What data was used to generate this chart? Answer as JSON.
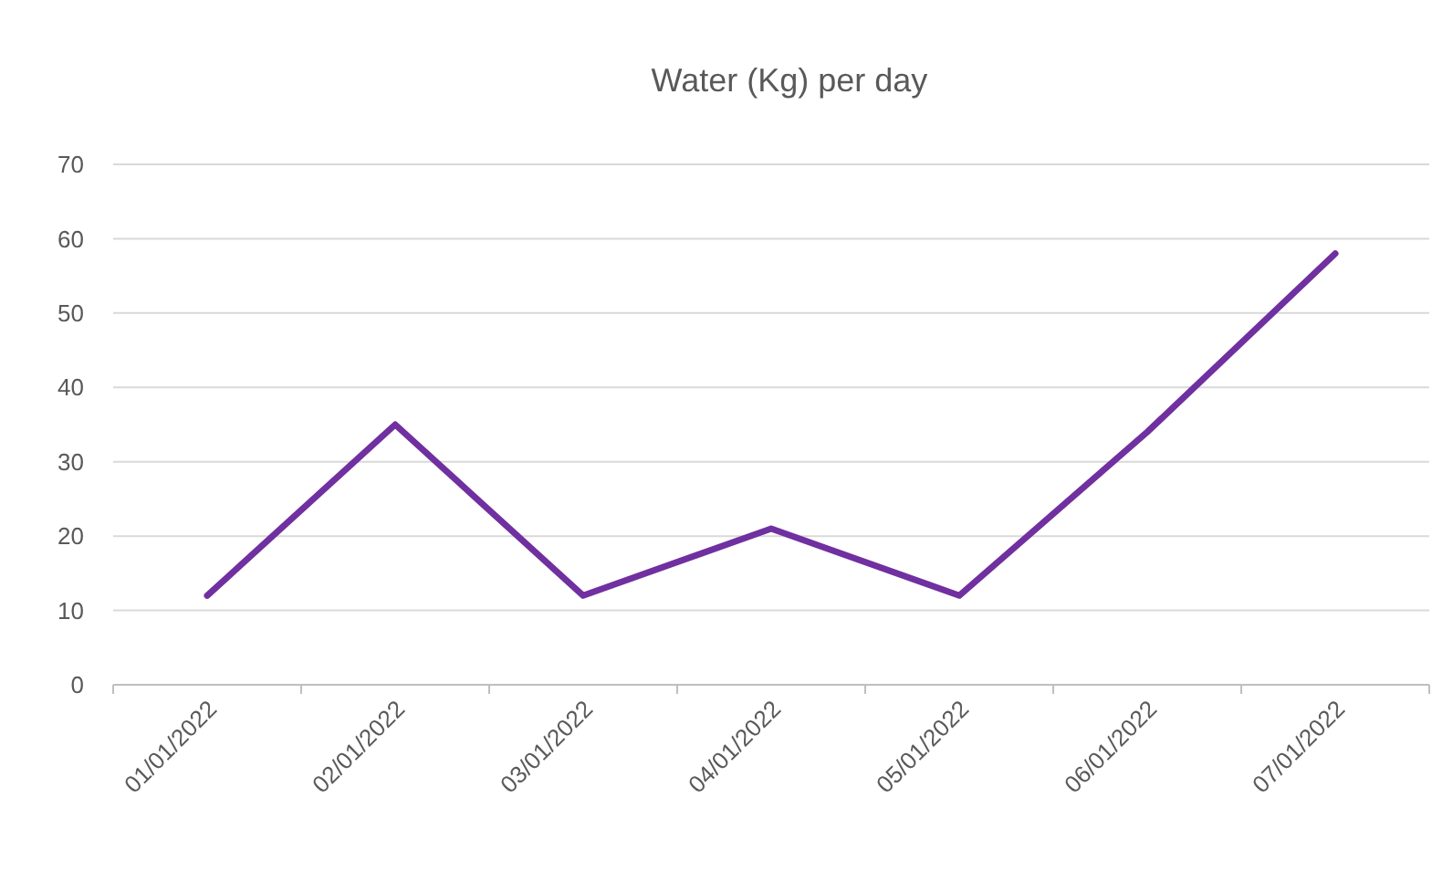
{
  "chart_data": {
    "type": "line",
    "title": "Water (Kg) per day",
    "categories": [
      "01/01/2022",
      "02/01/2022",
      "03/01/2022",
      "04/01/2022",
      "05/01/2022",
      "06/01/2022",
      "07/01/2022"
    ],
    "series": [
      {
        "color": "#7030a0",
        "values": [
          12,
          35,
          12,
          21,
          12,
          34,
          58
        ]
      }
    ],
    "ylim": [
      0,
      70
    ],
    "yticks": [
      0,
      10,
      20,
      30,
      40,
      50,
      60,
      70
    ],
    "grid": "y",
    "marker": "none",
    "line_style": "solid"
  }
}
